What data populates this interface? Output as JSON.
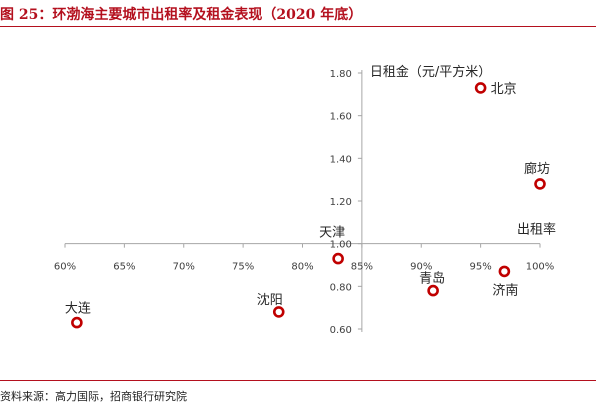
{
  "title": "图 25：环渤海主要城市出租率及租金表现（2020 年底）",
  "source": "资料来源：高力国际，招商银行研究院",
  "chart_data": {
    "type": "scatter",
    "title": "图 25：环渤海主要城市出租率及租金表现（2020 年底）",
    "xlabel": "出租率",
    "ylabel": "日租金（元/平方米）",
    "xlim": [
      0.6,
      1.0
    ],
    "ylim": [
      0.6,
      1.8
    ],
    "x_ticks": [
      "60%",
      "65%",
      "70%",
      "75%",
      "80%",
      "85%",
      "90%",
      "95%",
      "100%"
    ],
    "y_ticks": [
      "0.60",
      "0.80",
      "1.00",
      "1.20",
      "1.40",
      "1.60",
      "1.80"
    ],
    "axis_cross": {
      "x": 0.85,
      "y": 1.0
    },
    "marker_color": "#c00000",
    "points": [
      {
        "name": "北京",
        "x": 0.95,
        "y": 1.73
      },
      {
        "name": "廊坊",
        "x": 1.0,
        "y": 1.28
      },
      {
        "name": "天津",
        "x": 0.83,
        "y": 0.93
      },
      {
        "name": "济南",
        "x": 0.97,
        "y": 0.87
      },
      {
        "name": "青岛",
        "x": 0.91,
        "y": 0.78
      },
      {
        "name": "沈阳",
        "x": 0.78,
        "y": 0.68
      },
      {
        "name": "大连",
        "x": 0.61,
        "y": 0.63
      }
    ]
  }
}
